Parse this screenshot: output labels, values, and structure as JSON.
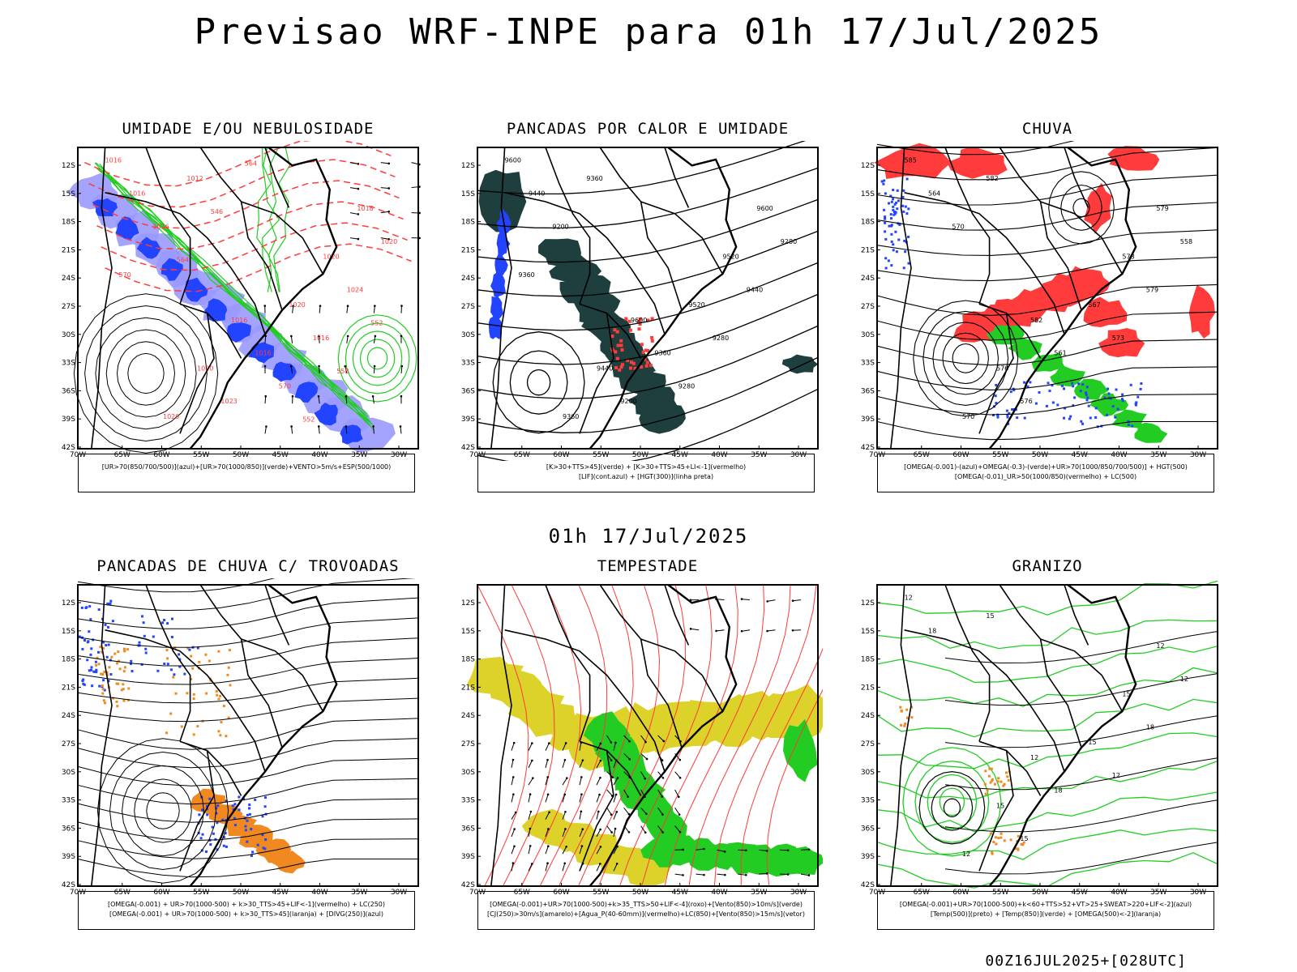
{
  "page": {
    "title": "Previsao WRF-INPE  para 01h 17/Jul/2025",
    "mid_title": "01h 17/Jul/2025",
    "footer": "00Z16JUL2025+[028UTC]"
  },
  "axes": {
    "lat_labels": [
      "12S",
      "15S",
      "18S",
      "21S",
      "24S",
      "27S",
      "30S",
      "33S",
      "36S",
      "39S",
      "42S"
    ],
    "lon_labels": [
      "70W",
      "65W",
      "60W",
      "55W",
      "50W",
      "45W",
      "40W",
      "35W",
      "30W"
    ]
  },
  "colors": {
    "red": "#ff3b3b",
    "green": "#22cc22",
    "blue": "#2244ff",
    "lavender": "#9a9aff",
    "orange": "#f08a20",
    "yellow": "#dcd22a",
    "darkteal": "#1f3f3f",
    "black": "#000000"
  },
  "panels": [
    {
      "id": "umidade",
      "title": "UMIDADE E/OU NEBULOSIDADE",
      "legend": [
        "[UR>70(850/700/500)](azul)+[UR>70(1000/850)](verde)+VENTO>5m/s+ESP(500/1000)"
      ],
      "contour_labels": [
        "1016",
        "1016",
        "1018",
        "1020",
        "1020",
        "1020",
        "1020",
        "1016",
        "1016",
        "1020",
        "1023",
        "1024",
        "1012",
        "1016",
        "1016",
        "570",
        "570",
        "564",
        "552",
        "546",
        "558",
        "564",
        "552"
      ]
    },
    {
      "id": "pancadas-calor",
      "title": "PANCADAS POR CALOR E UMIDADE",
      "legend": [
        "[K>30+TTS>45](verde)  +  [K>30+TTS>45+LI<-1](vermelho)",
        "[LIF](cont.azul)  +  [HGT(300)](linha preta)"
      ],
      "contour_labels": [
        "9600",
        "9600",
        "9600",
        "9440",
        "9520",
        "9360",
        "9520",
        "9440",
        "9360",
        "9280",
        "9200",
        "9440",
        "9360",
        "9280",
        "9200",
        "9280",
        "9360"
      ]
    },
    {
      "id": "chuva",
      "title": "CHUVA",
      "legend": [
        "[OMEGA(-0.001)-(azul)+OMEGA(-0.3)-(verde)+UR>70(1000/850/700/500)]  +  HGT(500)",
        "[OMEGA(-0.01)_UR>50(1000/850)(vermelho)  +  LC(500)"
      ],
      "contour_labels": [
        "585",
        "582",
        "579",
        "576",
        "573",
        "570",
        "567",
        "564",
        "561",
        "558",
        "576",
        "579",
        "582",
        "573",
        "570"
      ]
    },
    {
      "id": "pancadas-trovoadas",
      "title": "PANCADAS DE CHUVA C/ TROVOADAS",
      "legend": [
        "[OMEGA(-0.001)  +  UR>70(1000-500)  +  k>30_TTS>45+LIF<-1](vermelho)  +  LC(250)",
        "[OMEGA(-0.001)  +  UR>70(1000-500)  +  k>30_TTS>45](laranja)  +  [DIVG(250)](azul)"
      ],
      "contour_labels": []
    },
    {
      "id": "tempestade",
      "title": "TEMPESTADE",
      "legend": [
        "[OMEGA(-0.001)+UR>70(1000-500)+k>35_TTS>50+LIF<-4](roxo)+[Vento(850)>10m/s](verde)",
        "[CJ(250)>30m/s](amarelo)+[Agua_P(40-60mm)](vermelho)+LC(850)+[Vento(850)>15m/s](vetor)"
      ],
      "contour_labels": []
    },
    {
      "id": "granizo",
      "title": "GRANIZO",
      "legend": [
        "[OMEGA(-0.001)+UR>70(1000-500)+k<60+TTS>52+VT>25+SWEAT>220+LIF<-2](azul)",
        "[Temp(500)](preto)  +  [Temp(850)](verde)  +  [OMEGA(500)<-2](laranja)"
      ],
      "contour_labels": [
        "12",
        "12",
        "12",
        "15",
        "15",
        "12",
        "15",
        "18",
        "18",
        "12",
        "15",
        "18",
        "15",
        "12"
      ]
    }
  ]
}
